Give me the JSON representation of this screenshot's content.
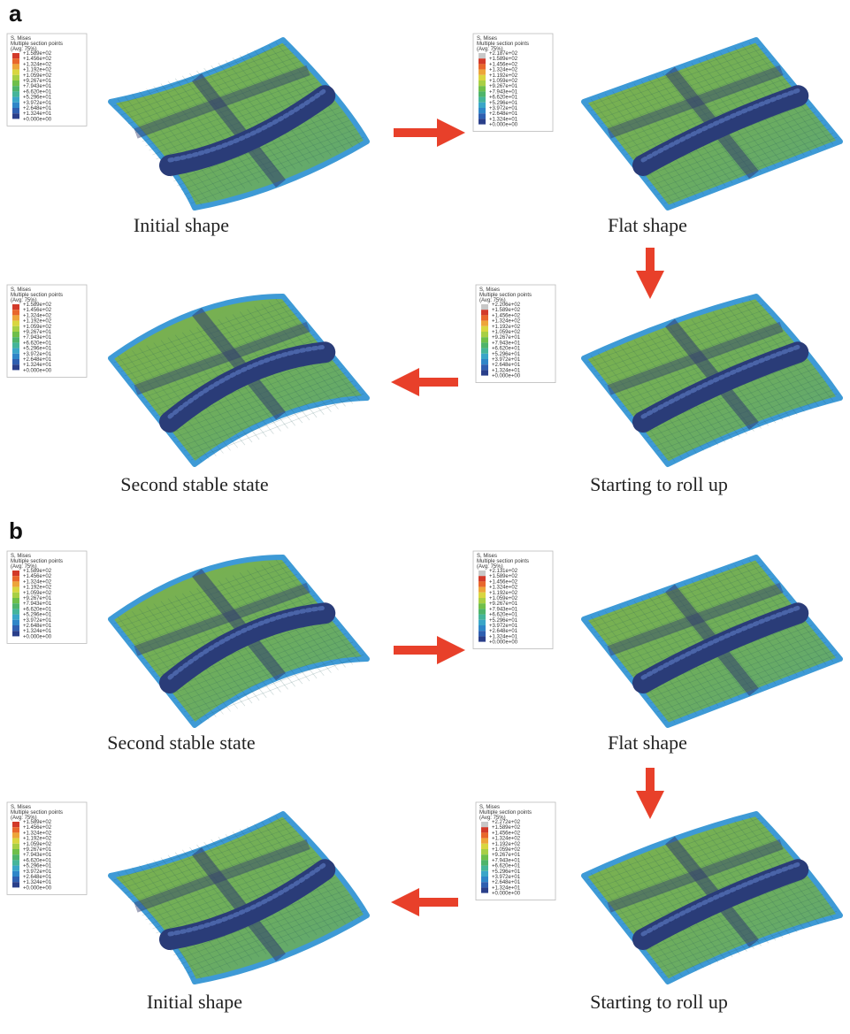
{
  "panels": [
    {
      "label": "a",
      "steps": [
        {
          "caption": "Initial shape",
          "legend": {
            "title": "S, Mises",
            "subtitle": "Multiple section points",
            "average": "(Avg: 75%)",
            "values": [
              "+1.589e+02",
              "+1.456e+02",
              "+1.324e+02",
              "+1.192e+02",
              "+1.059e+02",
              "+9.267e+01",
              "+7.943e+01",
              "+6.620e+01",
              "+5.296e+01",
              "+3.972e+01",
              "+2.648e+01",
              "+1.324e+01",
              "+0.000e+00"
            ]
          }
        },
        {
          "caption": "Flat shape",
          "legend": {
            "title": "S, Mises",
            "subtitle": "Multiple section points",
            "average": "(Avg: 75%)",
            "values": [
              "+2.187e+02",
              "+1.589e+02",
              "+1.456e+02",
              "+1.324e+02",
              "+1.192e+02",
              "+1.059e+02",
              "+9.267e+01",
              "+7.943e+01",
              "+6.620e+01",
              "+5.296e+01",
              "+3.972e+01",
              "+2.648e+01",
              "+1.324e+01",
              "+0.000e+00"
            ]
          }
        },
        {
          "caption": "Starting to roll up",
          "legend": {
            "title": "S, Mises",
            "subtitle": "Multiple section points",
            "average": "(Avg: 75%)",
            "values": [
              "+2.206e+02",
              "+1.589e+02",
              "+1.456e+02",
              "+1.324e+02",
              "+1.192e+02",
              "+1.059e+02",
              "+9.267e+01",
              "+7.943e+01",
              "+6.620e+01",
              "+5.296e+01",
              "+3.972e+01",
              "+2.648e+01",
              "+1.324e+01",
              "+0.000e+00"
            ]
          }
        },
        {
          "caption": "Second stable state",
          "legend": {
            "title": "S, Mises",
            "subtitle": "Multiple section points",
            "average": "(Avg: 75%)",
            "values": [
              "+1.589e+02",
              "+1.456e+02",
              "+1.324e+02",
              "+1.192e+02",
              "+1.059e+02",
              "+9.267e+01",
              "+7.943e+01",
              "+6.620e+01",
              "+5.296e+01",
              "+3.972e+01",
              "+2.648e+01",
              "+1.324e+01",
              "+0.000e+00"
            ]
          }
        }
      ]
    },
    {
      "label": "b",
      "steps": [
        {
          "caption": "Second stable state",
          "legend": {
            "title": "S, Mises",
            "subtitle": "Multiple section points",
            "average": "(Avg: 75%)",
            "values": [
              "+1.589e+02",
              "+1.456e+02",
              "+1.324e+02",
              "+1.192e+02",
              "+1.059e+02",
              "+9.267e+01",
              "+7.943e+01",
              "+6.620e+01",
              "+5.296e+01",
              "+3.972e+01",
              "+2.648e+01",
              "+1.324e+01",
              "+0.000e+00"
            ]
          }
        },
        {
          "caption": "Flat shape",
          "legend": {
            "title": "S, Mises",
            "subtitle": "Multiple section points",
            "average": "(Avg: 75%)",
            "values": [
              "+2.131e+02",
              "+1.589e+02",
              "+1.456e+02",
              "+1.324e+02",
              "+1.192e+02",
              "+1.059e+02",
              "+9.267e+01",
              "+7.943e+01",
              "+6.620e+01",
              "+5.296e+01",
              "+3.972e+01",
              "+2.648e+01",
              "+1.324e+01",
              "+0.000e+00"
            ]
          }
        },
        {
          "caption": "Starting to roll up",
          "legend": {
            "title": "S, Mises",
            "subtitle": "Multiple section points",
            "average": "(Avg: 75%)",
            "values": [
              "+2.272e+02",
              "+1.589e+02",
              "+1.456e+02",
              "+1.324e+02",
              "+1.192e+02",
              "+1.059e+02",
              "+9.267e+01",
              "+7.943e+01",
              "+6.620e+01",
              "+5.296e+01",
              "+3.972e+01",
              "+2.648e+01",
              "+1.324e+01",
              "+0.000e+00"
            ]
          }
        },
        {
          "caption": "Initial shape",
          "legend": {
            "title": "S, Mises",
            "subtitle": "Multiple section points",
            "average": "(Avg: 75%)",
            "values": [
              "+1.589e+02",
              "+1.456e+02",
              "+1.324e+02",
              "+1.192e+02",
              "+1.059e+02",
              "+9.267e+01",
              "+7.943e+01",
              "+6.620e+01",
              "+5.296e+01",
              "+3.972e+01",
              "+2.648e+01",
              "+1.324e+01",
              "+0.000e+00"
            ]
          }
        }
      ]
    }
  ]
}
